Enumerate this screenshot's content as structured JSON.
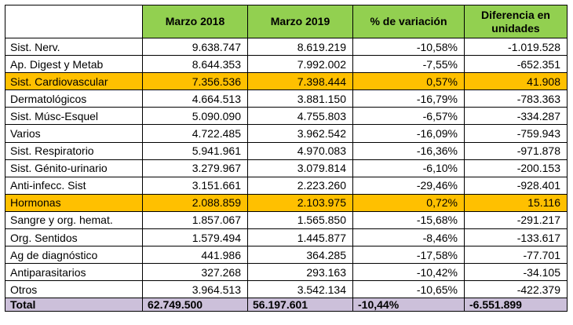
{
  "headers": {
    "col1": "Marzo 2018",
    "col2": "Marzo 2019",
    "col3": "% de variación",
    "col4": "Diferencia en unidades"
  },
  "rows": [
    {
      "label": "Sist. Nerv.",
      "m2018": "9.638.747",
      "m2019": "8.619.219",
      "var": "-10,58%",
      "diff": "-1.019.528",
      "highlight": false
    },
    {
      "label": "Ap. Digest y Metab",
      "m2018": "8.644.353",
      "m2019": "7.992.002",
      "var": "-7,55%",
      "diff": "-652.351",
      "highlight": false
    },
    {
      "label": "Sist. Cardiovascular",
      "m2018": "7.356.536",
      "m2019": "7.398.444",
      "var": "0,57%",
      "diff": "41.908",
      "highlight": true
    },
    {
      "label": "Dermatológicos",
      "m2018": "4.664.513",
      "m2019": "3.881.150",
      "var": "-16,79%",
      "diff": "-783.363",
      "highlight": false
    },
    {
      "label": "Sist. Músc-Esquel",
      "m2018": "5.090.090",
      "m2019": "4.755.803",
      "var": "-6,57%",
      "diff": "-334.287",
      "highlight": false
    },
    {
      "label": "Varios",
      "m2018": "4.722.485",
      "m2019": "3.962.542",
      "var": "-16,09%",
      "diff": "-759.943",
      "highlight": false
    },
    {
      "label": "Sist. Respiratorio",
      "m2018": "5.941.961",
      "m2019": "4.970.083",
      "var": "-16,36%",
      "diff": "-971.878",
      "highlight": false
    },
    {
      "label": "Sist. Génito-urinario",
      "m2018": "3.279.967",
      "m2019": "3.079.814",
      "var": "-6,10%",
      "diff": "-200.153",
      "highlight": false
    },
    {
      "label": "Anti-infecc. Sist",
      "m2018": "3.151.661",
      "m2019": "2.223.260",
      "var": "-29,46%",
      "diff": "-928.401",
      "highlight": false
    },
    {
      "label": "Hormonas",
      "m2018": "2.088.859",
      "m2019": "2.103.975",
      "var": "0,72%",
      "diff": "15.116",
      "highlight": true
    },
    {
      "label": "Sangre y org. hemat.",
      "m2018": "1.857.067",
      "m2019": "1.565.850",
      "var": "-15,68%",
      "diff": "-291.217",
      "highlight": false
    },
    {
      "label": "Org. Sentidos",
      "m2018": "1.579.494",
      "m2019": "1.445.877",
      "var": "-8,46%",
      "diff": "-133.617",
      "highlight": false
    },
    {
      "label": "Ag de diagnóstico",
      "m2018": "441.986",
      "m2019": "364.285",
      "var": "-17,58%",
      "diff": "-77.701",
      "highlight": false
    },
    {
      "label": "Antiparasitarios",
      "m2018": "327.268",
      "m2019": "293.163",
      "var": "-10,42%",
      "diff": "-34.105",
      "highlight": false
    },
    {
      "label": "Otros",
      "m2018": "3.964.513",
      "m2019": "3.542.134",
      "var": "-10,65%",
      "diff": "-422.379",
      "highlight": false
    }
  ],
  "total": {
    "label": "Total",
    "m2018": "62.749.500",
    "m2019": "56.197.601",
    "var": "-10,44%",
    "diff": "-6.551.899"
  },
  "colors": {
    "header_bg": "#92d050",
    "highlight_bg": "#ffc000",
    "total_bg": "#ccc0da",
    "border": "#000000"
  }
}
